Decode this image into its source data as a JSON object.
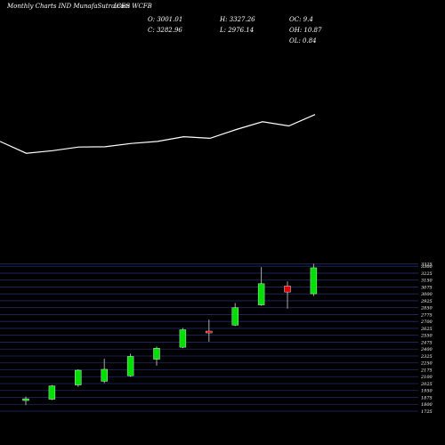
{
  "header": {
    "source": "Monthly Charts IND MunafaSutra.com",
    "symbol": "ICES WCFB",
    "open": "O: 3001.01",
    "close": "C: 3282.96",
    "high": "H: 3327.26",
    "low": "L: 2976.14",
    "oc": "OC: 9.4",
    "oh": "OH: 10.87",
    "ol": "OL: 0.84"
  },
  "colors": {
    "background": "#000000",
    "up": "#00e000",
    "down": "#e00000",
    "line": "#ffffff",
    "grid": "#1e2c66"
  },
  "chart_data": [
    {
      "type": "line",
      "title": "",
      "x": [
        1,
        2,
        3,
        4,
        5,
        6,
        7,
        8,
        9,
        10,
        11,
        12,
        13
      ],
      "values": [
        3300,
        1000,
        1500,
        2200,
        2250,
        2900,
        3300,
        4200,
        3900,
        5600,
        7100,
        6300,
        8500
      ],
      "ylim": [
        0,
        10000
      ],
      "grid": false
    },
    {
      "type": "candlestick",
      "title": "",
      "ylim": [
        1725,
        3350
      ],
      "y_ticks": [
        3325,
        3300,
        3225,
        3150,
        3075,
        3000,
        2925,
        2850,
        2775,
        2700,
        2625,
        2550,
        2475,
        2400,
        2325,
        2250,
        2175,
        2100,
        2025,
        1950,
        1875,
        1800,
        1725
      ],
      "grid": true,
      "ohlc": [
        {
          "open": 1845,
          "high": 1883,
          "low": 1790,
          "close": 1860
        },
        {
          "open": 1855,
          "high": 2010,
          "low": 1845,
          "close": 2000
        },
        {
          "open": 2010,
          "high": 2180,
          "low": 1990,
          "close": 2170
        },
        {
          "open": 2050,
          "high": 2295,
          "low": 2030,
          "close": 2180
        },
        {
          "open": 2110,
          "high": 2350,
          "low": 2100,
          "close": 2320
        },
        {
          "open": 2290,
          "high": 2425,
          "low": 2220,
          "close": 2410
        },
        {
          "open": 2420,
          "high": 2630,
          "low": 2410,
          "close": 2610
        },
        {
          "open": 2595,
          "high": 2720,
          "low": 2480,
          "close": 2580
        },
        {
          "open": 2660,
          "high": 2900,
          "low": 2650,
          "close": 2850
        },
        {
          "open": 2880,
          "high": 3290,
          "low": 2870,
          "close": 3110
        },
        {
          "open": 3085,
          "high": 3135,
          "low": 2840,
          "close": 3020
        },
        {
          "open": 3001.01,
          "high": 3327.26,
          "low": 2976.14,
          "close": 3282.96
        }
      ]
    }
  ]
}
